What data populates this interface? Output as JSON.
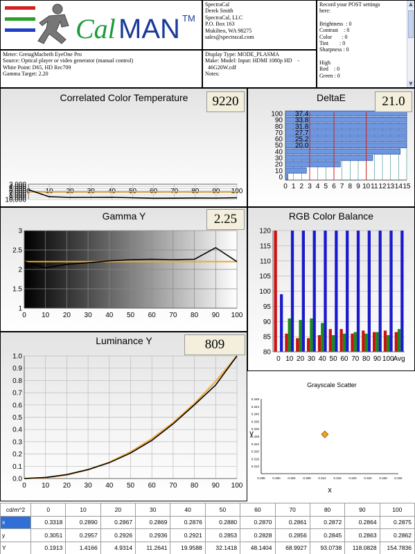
{
  "header": {
    "logo": {
      "brand_a": "Cal",
      "brand_b": "MAN",
      "trademark": "TM",
      "icon": "running-man-icon"
    },
    "company_lines": [
      "SpectraCal",
      "Derek Smith",
      "SpectraCal, LLC",
      "P.O. Box 163",
      "Mukilteo, WA 98275",
      "sales@spectracal.com"
    ],
    "post_settings": {
      "prompt_lines": [
        "Record your POST settings",
        "here:"
      ],
      "lines": [
        "Brightness  : 0",
        "Contrast    : 0",
        "Color       : 0",
        "Tint        : 0",
        "Sharpness : 0",
        "",
        "High",
        "Red    : 0",
        "Green : 0"
      ]
    },
    "meter_lines": [
      "Meter: GretagMacbeth EyeOne Pro",
      "Source: Optical player or video generator (manual control)",
      "White Point: D65, HD Rec709",
      "Gamma Target: 2.20"
    ],
    "display_lines": [
      "Display Type: MODE_PLASMA",
      "Make: Model: Input: HDMI 1080p HD    -",
      "  46G20W.cdf",
      "Notes:"
    ]
  },
  "colors": {
    "target": "#f0a830",
    "measured": "#000000",
    "red": "#cc1111",
    "green": "#1a8a1a",
    "blue": "#1a1acc",
    "delta_bar": "#6d97e0",
    "scatter_point": "#f0a020"
  },
  "chart_data": [
    {
      "id": "cct",
      "type": "line",
      "title": "Correlated Color Temperature",
      "readout": "9220",
      "x": [
        0,
        10,
        20,
        30,
        40,
        50,
        60,
        70,
        80,
        90,
        100
      ],
      "x_ticks": [
        "0",
        "10",
        "20",
        "30",
        "40",
        "50",
        "60",
        "70",
        "80",
        "90",
        "100"
      ],
      "ylim": [
        3000,
        10000
      ],
      "y_ticks": [
        "3,000",
        "4,000",
        "5,000",
        "6,000",
        "7,000",
        "8,000",
        "9,000",
        "10,000"
      ],
      "y_tick_values": [
        3000,
        4000,
        5000,
        6000,
        7000,
        8000,
        9000,
        10000
      ],
      "grid": true,
      "series": [
        {
          "values": [
            5500,
            8750,
            9050,
            9020,
            9000,
            9230,
            9470,
            9430,
            9350,
            9400,
            9240
          ],
          "color": "#000000"
        },
        {
          "values": [
            6500,
            6500,
            6500,
            6500,
            6500,
            6500,
            6500,
            6500,
            6500,
            6500,
            6500
          ],
          "color": "#f0a830"
        }
      ]
    },
    {
      "id": "deltae",
      "type": "bar",
      "orientation": "horizontal",
      "title": "DeltaE",
      "readout": "21.0",
      "x_ticks": [
        "0",
        "1",
        "2",
        "3",
        "4",
        "5",
        "6",
        "7",
        "8",
        "9",
        "10",
        "11",
        "12",
        "13",
        "14",
        "15"
      ],
      "xlim": [
        0,
        15
      ],
      "y_ticks": [
        "100",
        "90",
        "80",
        "70",
        "60",
        "50",
        "40",
        "30",
        "20",
        "10",
        "0"
      ],
      "categories": [
        "100",
        "90",
        "80",
        "70",
        "60",
        "50",
        "40",
        "30",
        "20",
        "10",
        "0"
      ],
      "values": [
        37.4,
        33.8,
        31.8,
        27.7,
        25.2,
        20.0,
        14.2,
        10.8,
        6.8,
        2.6,
        0.3
      ],
      "data_labels": [
        "37.4",
        "33.8",
        "31.8",
        "27.7",
        "25.2",
        "20.0",
        "",
        "",
        "",
        "",
        ""
      ],
      "reference_lines": [
        3,
        6,
        10
      ],
      "grid": true
    },
    {
      "id": "gamma",
      "type": "line",
      "title": "Gamma Y",
      "readout": "2.25",
      "x": [
        0,
        10,
        20,
        30,
        40,
        50,
        60,
        70,
        80,
        90,
        100
      ],
      "x_ticks": [
        "0",
        "10",
        "20",
        "30",
        "40",
        "50",
        "60",
        "70",
        "80",
        "90",
        "100"
      ],
      "ylim": [
        1,
        3
      ],
      "y_ticks": [
        "1",
        "1.5",
        "2",
        "2.5",
        "3"
      ],
      "y_tick_values": [
        1,
        1.5,
        2,
        2.5,
        3
      ],
      "grid": true,
      "series": [
        {
          "values": [
            2.2,
            2.04,
            2.13,
            2.17,
            2.22,
            2.25,
            2.26,
            2.25,
            2.26,
            2.56,
            2.2
          ],
          "color": "#000000"
        },
        {
          "values": [
            2.2,
            2.2,
            2.2,
            2.2,
            2.2,
            2.2,
            2.2,
            2.2,
            2.2,
            2.2,
            2.2
          ],
          "color": "#f0a830"
        }
      ]
    },
    {
      "id": "rgb",
      "type": "bar",
      "title": "RGB Color Balance",
      "categories": [
        "0",
        "10",
        "20",
        "30",
        "40",
        "50",
        "60",
        "70",
        "80",
        "90",
        "100",
        "Avg"
      ],
      "ylim": [
        80,
        120
      ],
      "y_ticks": [
        "80",
        "85",
        "90",
        "95",
        "100",
        "105",
        "110",
        "115",
        "120"
      ],
      "y_tick_values": [
        80,
        85,
        90,
        95,
        100,
        105,
        110,
        115,
        120
      ],
      "grid": true,
      "series": [
        {
          "color": "#cc1111",
          "values": [
            120,
            86,
            84.5,
            84.5,
            85.5,
            87.5,
            87.5,
            86,
            87,
            86.5,
            87,
            86.5
          ]
        },
        {
          "color": "#1a8a1a",
          "values": [
            80,
            91,
            90.5,
            91,
            89.5,
            85.5,
            86,
            86.5,
            86,
            86.5,
            85.5,
            87.5
          ]
        },
        {
          "color": "#1a1acc",
          "values": [
            99,
            120,
            120,
            120,
            120,
            120,
            120,
            120,
            120,
            120,
            120,
            120
          ]
        }
      ]
    },
    {
      "id": "luminance",
      "type": "line",
      "title": "Luminance Y",
      "readout": "809",
      "x": [
        0,
        10,
        20,
        30,
        40,
        50,
        60,
        70,
        80,
        90,
        100
      ],
      "x_ticks": [
        "0",
        "10",
        "20",
        "30",
        "40",
        "50",
        "60",
        "70",
        "80",
        "90",
        "100"
      ],
      "ylim": [
        0,
        1
      ],
      "y_ticks": [
        "0.0",
        "0.1",
        "0.2",
        "0.3",
        "0.4",
        "0.5",
        "0.6",
        "0.7",
        "0.8",
        "0.9",
        "1.0"
      ],
      "y_tick_values": [
        0,
        0.1,
        0.2,
        0.3,
        0.4,
        0.5,
        0.6,
        0.7,
        0.8,
        0.9,
        1.0
      ],
      "grid": true,
      "series": [
        {
          "values": [
            0.0,
            0.009,
            0.032,
            0.073,
            0.129,
            0.208,
            0.311,
            0.446,
            0.601,
            0.763,
            1.0
          ],
          "color": "#000000"
        },
        {
          "values": [
            0.0,
            0.006,
            0.029,
            0.071,
            0.133,
            0.218,
            0.325,
            0.456,
            0.612,
            0.793,
            1.0
          ],
          "color": "#f0a830"
        }
      ]
    },
    {
      "id": "scatter",
      "type": "scatter",
      "title": "Grayscale Scatter",
      "xlabel": "x",
      "ylabel": "y",
      "xlim": [
        0.296,
        0.332
      ],
      "ylim": [
        0.308,
        0.348
      ],
      "x_ticks": [
        "0.296",
        "0.300",
        "0.304",
        "0.308",
        "0.312",
        "0.316",
        "0.320",
        "0.324",
        "0.328",
        "0.332"
      ],
      "x_tick_values": [
        0.296,
        0.3,
        0.304,
        0.308,
        0.312,
        0.316,
        0.32,
        0.324,
        0.328,
        0.332
      ],
      "y_ticks": [
        "0.348",
        "0.344",
        "0.340",
        "0.336",
        "0.332",
        "0.328",
        "0.324",
        "0.320",
        "0.316",
        "0.312"
      ],
      "y_tick_values": [
        0.348,
        0.344,
        0.34,
        0.336,
        0.332,
        0.328,
        0.324,
        0.32,
        0.316,
        0.312
      ],
      "points": [
        {
          "x": 0.3127,
          "y": 0.329
        }
      ]
    }
  ],
  "table": {
    "header": [
      "cd/m^2",
      "0",
      "10",
      "20",
      "30",
      "40",
      "50",
      "60",
      "70",
      "80",
      "90",
      "100"
    ],
    "rows": [
      {
        "label": "x",
        "values": [
          "0.3318",
          "0.2890",
          "0.2867",
          "0.2869",
          "0.2876",
          "0.2880",
          "0.2870",
          "0.2861",
          "0.2872",
          "0.2864",
          "0.2875"
        ]
      },
      {
        "label": "y",
        "values": [
          "0.3051",
          "0.2957",
          "0.2926",
          "0.2936",
          "0.2921",
          "0.2853",
          "0.2828",
          "0.2856",
          "0.2845",
          "0.2863",
          "0.2862"
        ]
      },
      {
        "label": "Y",
        "values": [
          "0.1913",
          "1.4166",
          "4.9314",
          "11.2641",
          "19.9588",
          "32.1418",
          "48.1404",
          "68.9927",
          "93.0738",
          "118.0828",
          "154.7836"
        ]
      }
    ]
  }
}
